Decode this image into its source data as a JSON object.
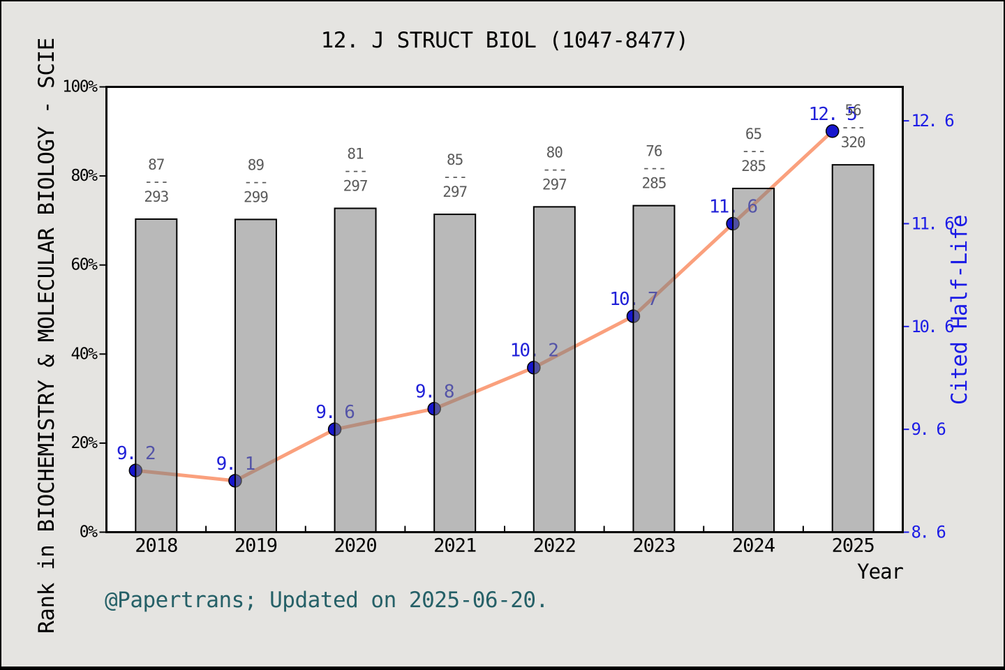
{
  "title": "12. J STRUCT BIOL (1047-8477)",
  "footer": "@Papertrans; Updated on 2025-06-20.",
  "chart_data": {
    "type": "bar+line",
    "title": "12. J STRUCT BIOL (1047-8477)",
    "categories": [
      "2018",
      "2019",
      "2020",
      "2021",
      "2022",
      "2023",
      "2024",
      "2025"
    ],
    "series": [
      {
        "name": "rank-fraction-bars",
        "type": "bar",
        "axis": "left",
        "rank": [
          87,
          89,
          81,
          85,
          80,
          76,
          65,
          56
        ],
        "total": [
          293,
          299,
          297,
          297,
          297,
          285,
          285,
          320
        ],
        "bar_height_pct": [
          70.3,
          70.2,
          72.7,
          71.4,
          73.1,
          73.3,
          77.2,
          82.5
        ]
      },
      {
        "name": "Cited Half-Life",
        "type": "line",
        "axis": "right",
        "values": [
          9.2,
          9.1,
          9.6,
          9.8,
          10.2,
          10.7,
          11.6,
          12.5
        ],
        "point_labels": [
          "9. 2",
          "9. 1",
          "9. 6",
          "9. 8",
          "10. 2",
          "10. 7",
          "11. 6",
          "12. 5"
        ]
      }
    ],
    "left_axis": {
      "title": "Rank in BIOCHEMISTRY & MOLECULAR BIOLOGY - SCIE",
      "tick_labels": [
        "0%",
        "20%",
        "40%",
        "60%",
        "80%",
        "100%"
      ],
      "tick_values": [
        0,
        20,
        40,
        60,
        80,
        100
      ],
      "range": [
        0,
        100
      ]
    },
    "right_axis": {
      "title": "Cited Half-Life",
      "tick_labels": [
        "8. 6",
        "9. 6",
        "10. 6",
        "11. 6",
        "12. 6"
      ],
      "tick_values": [
        8.6,
        9.6,
        10.6,
        11.6,
        12.6
      ],
      "range": [
        8.6,
        12.93
      ]
    },
    "x_axis": {
      "title": "Year"
    },
    "fraction_separator": "---",
    "grid": false,
    "legend": "none"
  },
  "colors": {
    "background": "#e5e4e1",
    "plot_background": "#ffffff",
    "spine": "#000000",
    "bar_fill": "#808080",
    "bar_fill_opacity": "0.55",
    "bar_stroke": "#000000",
    "line": "#faa07d",
    "marker_fill": "#1616cd",
    "marker_stroke": "#000000",
    "point_label": "#2020d8",
    "right_axis_text": "#1c1ce6",
    "fraction_text": "#5a5a5a",
    "footer_text": "#256067",
    "axis_text": "#000000"
  }
}
